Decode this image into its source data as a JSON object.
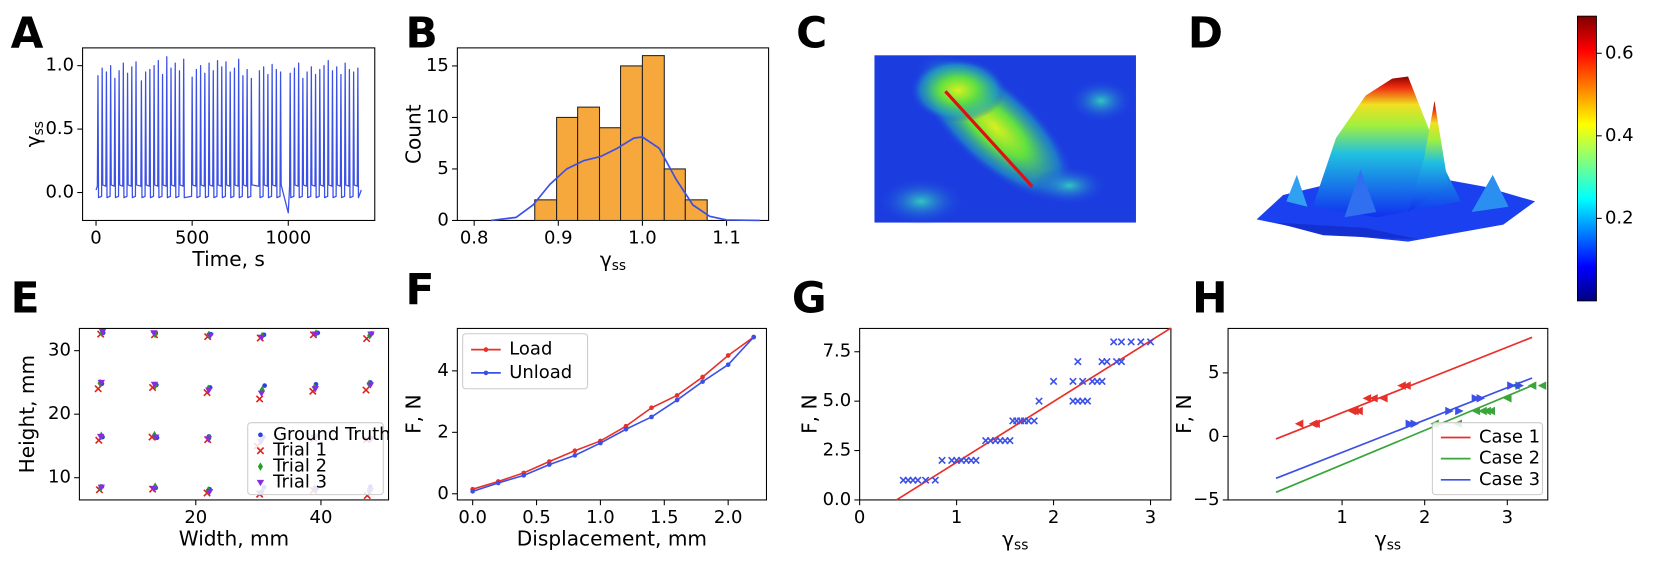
{
  "chart_data": [
    {
      "panel": "A",
      "type": "line",
      "xlabel": "Time, s",
      "ylabel": [
        "γ",
        "ss"
      ],
      "xlim": [
        -70,
        1450
      ],
      "ylim": [
        -0.22,
        1.14
      ],
      "xticks": [
        0,
        500,
        1000
      ],
      "yticks": [
        {
          "value": 0,
          "label": "0.0"
        },
        0.5,
        {
          "value": 1,
          "label": "1.0"
        }
      ],
      "series": [
        {
          "color": "#3b50e6",
          "x": [
            0,
            7,
            10,
            13,
            29,
            32,
            35,
            51,
            54,
            57,
            73,
            76,
            79,
            95,
            98,
            101,
            117,
            120,
            123,
            139,
            142,
            145,
            161,
            164,
            167,
            183,
            186,
            189,
            205,
            208,
            211,
            233,
            236,
            239,
            255,
            258,
            261,
            277,
            280,
            283,
            299,
            302,
            305,
            321,
            324,
            327,
            343,
            346,
            349,
            365,
            368,
            371,
            387,
            390,
            393,
            409,
            412,
            415,
            431,
            434,
            437,
            453,
            456,
            459,
            497,
            500,
            503,
            519,
            522,
            525,
            541,
            544,
            547,
            563,
            566,
            569,
            585,
            588,
            591,
            607,
            610,
            613,
            629,
            632,
            635,
            651,
            654,
            657,
            673,
            676,
            679,
            695,
            698,
            701,
            717,
            720,
            723,
            739,
            742,
            745,
            761,
            764,
            767,
            783,
            786,
            789,
            805,
            808,
            811,
            847,
            850,
            853,
            869,
            872,
            875,
            891,
            894,
            897,
            913,
            916,
            919,
            935,
            938,
            941,
            957,
            960,
            963,
            1000,
            1007,
            1010,
            1013,
            1029,
            1032,
            1035,
            1051,
            1054,
            1057,
            1073,
            1076,
            1079,
            1095,
            1098,
            1101,
            1117,
            1120,
            1123,
            1139,
            1142,
            1145,
            1161,
            1164,
            1167,
            1183,
            1186,
            1189,
            1205,
            1208,
            1211,
            1227,
            1230,
            1233,
            1249,
            1252,
            1255,
            1271,
            1274,
            1277,
            1293,
            1296,
            1299,
            1315,
            1318,
            1321,
            1337,
            1340,
            1343,
            1359,
            1362,
            1365,
            1380
          ],
          "values": [
            0.02,
            0.05,
            0.92,
            -0.04,
            -0.03,
            0.98,
            0.06,
            0.05,
            0.95,
            -0.04,
            -0.03,
            1.0,
            0.06,
            0.05,
            0.9,
            -0.04,
            -0.03,
            0.96,
            0.06,
            0.05,
            1.02,
            -0.04,
            -0.03,
            0.94,
            0.06,
            0.05,
            0.99,
            -0.04,
            -0.03,
            1.03,
            0.06,
            0.05,
            0.88,
            -0.04,
            -0.03,
            0.95,
            0.06,
            0.05,
            0.97,
            -0.04,
            -0.03,
            1.0,
            0.06,
            0.05,
            1.04,
            -0.04,
            -0.03,
            0.93,
            0.06,
            0.05,
            1.07,
            -0.04,
            -0.03,
            0.98,
            0.06,
            0.05,
            1.02,
            -0.04,
            -0.03,
            0.96,
            0.06,
            0.05,
            1.05,
            -0.04,
            -0.03,
            0.91,
            0.06,
            0.05,
            0.97,
            -0.04,
            -0.03,
            1.0,
            0.06,
            0.05,
            0.94,
            -0.04,
            -0.03,
            1.02,
            0.06,
            0.05,
            0.96,
            -0.04,
            -0.03,
            1.04,
            0.06,
            0.05,
            0.99,
            -0.04,
            -0.03,
            1.03,
            0.06,
            0.05,
            0.95,
            -0.04,
            -0.03,
            0.98,
            0.06,
            0.05,
            1.05,
            -0.04,
            -0.03,
            0.92,
            0.06,
            0.05,
            0.97,
            -0.04,
            -0.03,
            0.9,
            0.06,
            0.05,
            0.96,
            -0.04,
            -0.03,
            0.99,
            0.06,
            0.05,
            0.93,
            -0.04,
            -0.03,
            1.01,
            0.06,
            0.05,
            0.97,
            -0.04,
            -0.03,
            0.95,
            0.06,
            -0.16,
            0.05,
            0.94,
            -0.04,
            -0.03,
            0.98,
            0.06,
            0.05,
            1.02,
            -0.04,
            -0.03,
            0.9,
            0.06,
            0.05,
            0.95,
            -0.04,
            -0.03,
            0.99,
            0.06,
            0.05,
            0.93,
            -0.04,
            -0.03,
            0.97,
            0.06,
            0.05,
            1.0,
            -0.04,
            -0.03,
            1.04,
            0.06,
            0.05,
            0.96,
            -0.04,
            -0.03,
            0.99,
            0.06,
            0.05,
            0.93,
            -0.04,
            -0.03,
            1.02,
            0.06,
            0.05,
            0.97,
            -0.04,
            -0.03,
            0.95,
            0.06,
            0.05,
            0.98,
            -0.04,
            0.02
          ]
        }
      ]
    },
    {
      "panel": "B",
      "type": "histogram",
      "xlabel": [
        "γ",
        "ss"
      ],
      "ylabel": "Count",
      "xlim": [
        0.78,
        1.15
      ],
      "ylim": [
        0,
        16.75
      ],
      "xticks": [
        0.8,
        0.9,
        {
          "value": 1,
          "label": "1.0"
        },
        1.1
      ],
      "yticks": [
        0,
        5,
        10,
        15
      ],
      "bins": [
        0.872,
        0.898,
        0.923,
        0.949,
        0.974,
        1.0,
        1.026,
        1.051,
        1.077
      ],
      "counts": [
        2,
        10,
        11,
        9,
        15,
        16,
        5,
        2
      ],
      "color": "#f6a83c",
      "kde": {
        "color": "#3b50e6",
        "x": [
          0.82,
          0.85,
          0.87,
          0.89,
          0.91,
          0.93,
          0.95,
          0.97,
          0.99,
          1.0,
          1.02,
          1.04,
          1.06,
          1.08,
          1.1,
          1.14
        ],
        "values": [
          0,
          0.3,
          1.5,
          3.5,
          5,
          5.8,
          6.2,
          7,
          8,
          8.1,
          7,
          4,
          1.5,
          0.4,
          0.05,
          0
        ]
      }
    },
    {
      "panel": "C",
      "type": "heatmap"
    },
    {
      "panel": "D",
      "type": "surface",
      "colorbar": {
        "clim": [
          0,
          0.69
        ],
        "ticks": [
          0.2,
          0.4,
          0.6
        ]
      }
    },
    {
      "panel": "E",
      "type": "scatter",
      "xlabel": "Width, mm",
      "ylabel": "Height, mm",
      "xlim": [
        1.4,
        50.8
      ],
      "ylim": [
        6.5,
        33.5
      ],
      "xticks": [
        20,
        40
      ],
      "yticks": [
        10,
        20,
        30
      ],
      "legend": "lower right",
      "series": [
        {
          "name": "Ground Truth",
          "color": "#2b3fe6",
          "marker": "dot",
          "x": [
            5.0,
            13.6,
            22.2,
            30.9,
            39.3,
            47.9,
            5.1,
            13.8,
            22.1,
            30.8,
            39.4,
            48.0,
            5.0,
            13.7,
            22.3,
            31.0,
            39.2,
            47.9,
            5.2,
            13.6,
            22.4,
            30.9,
            39.5,
            48.1
          ],
          "values": [
            8.6,
            8.4,
            8.2,
            8.5,
            8.3,
            8.6,
            16.4,
            16.3,
            16.5,
            16.4,
            16.6,
            16.2,
            24.8,
            24.6,
            24.2,
            24.5,
            24.7,
            25.0,
            32.8,
            32.7,
            32.6,
            32.5,
            32.8,
            32.7
          ]
        },
        {
          "name": "Trial 1",
          "color": "#e0201c",
          "marker": "x",
          "x": [
            4.6,
            13.1,
            21.8,
            30.2,
            38.8,
            47.4,
            4.5,
            13.0,
            21.9,
            29.8,
            38.9,
            47.3,
            4.4,
            13.1,
            21.8,
            30.2,
            38.7,
            47.2,
            4.8,
            13.4,
            21.9,
            30.3,
            38.8,
            47.3
          ],
          "values": [
            8.1,
            8.2,
            7.6,
            7.4,
            8.0,
            7.2,
            15.9,
            16.4,
            16.0,
            15.0,
            16.2,
            16.0,
            24.0,
            24.2,
            23.4,
            22.4,
            23.6,
            23.8,
            32.6,
            32.5,
            32.2,
            32.0,
            32.5,
            31.9
          ]
        },
        {
          "name": "Trial 2",
          "color": "#1fa01f",
          "marker": "diamond",
          "x": [
            4.8,
            13.5,
            22.0,
            30.6,
            39.0,
            47.7,
            4.9,
            13.4,
            22.1,
            30.5,
            39.1,
            47.8,
            4.7,
            13.5,
            22.0,
            30.6,
            39.0,
            47.7,
            5.0,
            13.5,
            22.1,
            30.6,
            39.2,
            47.8
          ],
          "values": [
            8.4,
            8.6,
            8.0,
            7.8,
            8.3,
            7.9,
            16.6,
            16.7,
            16.2,
            15.9,
            16.4,
            16.3,
            24.9,
            24.5,
            24.0,
            23.8,
            24.2,
            24.8,
            32.8,
            32.6,
            32.5,
            32.3,
            32.7,
            32.4
          ]
        },
        {
          "name": "Trial 3",
          "color": "#8a2be2",
          "marker": "tri_down",
          "x": [
            4.9,
            13.3,
            22.2,
            30.4,
            39.2,
            47.9,
            4.8,
            13.6,
            22.0,
            30.4,
            39.0,
            48.0,
            4.9,
            13.4,
            22.1,
            30.5,
            39.1,
            47.9,
            5.1,
            13.3,
            22.3,
            30.5,
            39.1,
            48.0
          ],
          "values": [
            8.5,
            8.3,
            7.8,
            7.6,
            8.2,
            8.0,
            16.5,
            16.4,
            16.1,
            15.7,
            16.3,
            16.1,
            25.0,
            24.7,
            23.8,
            23.3,
            24.0,
            24.6,
            33.0,
            32.8,
            32.4,
            32.1,
            32.6,
            32.6
          ]
        }
      ]
    },
    {
      "panel": "F",
      "type": "line",
      "xlabel": "Displacement, mm",
      "ylabel": "F, N",
      "xlim": [
        -0.12,
        2.3
      ],
      "ylim": [
        -0.2,
        5.38
      ],
      "xticks": [
        {
          "value": 0,
          "label": "0.0"
        },
        0.5,
        {
          "value": 1,
          "label": "1.0"
        },
        1.5,
        {
          "value": 2,
          "label": "2.0"
        }
      ],
      "yticks": [
        0,
        2,
        4
      ],
      "legend": "upper left",
      "x": [
        0,
        0.2,
        0.4,
        0.6,
        0.8,
        1.0,
        1.2,
        1.4,
        1.6,
        1.8,
        2.0,
        2.2
      ],
      "series": [
        {
          "name": "Load",
          "color": "#e8302a",
          "marker": "dot",
          "values": [
            0.15,
            0.4,
            0.68,
            1.05,
            1.4,
            1.72,
            2.2,
            2.8,
            3.2,
            3.8,
            4.5,
            5.1
          ]
        },
        {
          "name": "Unload",
          "color": "#3b50e6",
          "marker": "dot",
          "values": [
            0.08,
            0.35,
            0.6,
            0.95,
            1.25,
            1.65,
            2.1,
            2.5,
            3.05,
            3.65,
            4.2,
            5.1
          ]
        }
      ]
    },
    {
      "panel": "G",
      "type": "scatter",
      "xlabel": [
        "γ",
        "ss"
      ],
      "ylabel": "F, N",
      "xlim": [
        0,
        3.21
      ],
      "ylim": [
        0,
        8.68
      ],
      "xticks": [
        0,
        1,
        2,
        3
      ],
      "yticks": [
        {
          "value": 0,
          "label": "0.0"
        },
        2.5,
        {
          "value": 5,
          "label": "5.0"
        },
        7.5
      ],
      "series": [
        {
          "color": "#3b50e6",
          "marker": "x",
          "x": [
            0.45,
            0.5,
            0.55,
            0.6,
            0.68,
            0.78,
            0.85,
            0.95,
            1.0,
            1.05,
            1.1,
            1.15,
            1.2,
            1.3,
            1.35,
            1.4,
            1.45,
            1.5,
            1.55,
            1.58,
            1.62,
            1.66,
            1.7,
            1.74,
            1.8,
            1.85,
            2.2,
            2.25,
            2.3,
            2.35,
            2.0,
            2.2,
            2.3,
            2.4,
            2.45,
            2.5,
            2.25,
            2.5,
            2.55,
            2.65,
            2.7,
            2.62,
            2.7,
            2.8,
            2.9,
            3.0
          ],
          "values": [
            1,
            1,
            1,
            1,
            1,
            1,
            2,
            2,
            2,
            2,
            2,
            2,
            2,
            3,
            3,
            3,
            3,
            3,
            3,
            4,
            4,
            4,
            4,
            4,
            4,
            5,
            5,
            5,
            5,
            5,
            6,
            6,
            6,
            6,
            6,
            6,
            7,
            7,
            7,
            7,
            7,
            8,
            8,
            8,
            8,
            8
          ],
          "fit_color": "#e8302a",
          "fit_x": [
            0.38,
            3.21
          ],
          "fit_values": [
            0,
            8.7
          ]
        }
      ]
    },
    {
      "panel": "H",
      "type": "scatter",
      "xlabel": [
        "γ",
        "ss"
      ],
      "ylabel": "F, N",
      "xlim": [
        -0.38,
        3.49
      ],
      "ylim": [
        -5,
        8.5
      ],
      "xticks": [
        1,
        2,
        3
      ],
      "yticks": [
        {
          "value": -5,
          "label": "−5"
        },
        0,
        5
      ],
      "legend": "lower right",
      "series": [
        {
          "name": "Case 1",
          "color": "#e8302a",
          "marker": "tri_left",
          "x": [
            0.48,
            0.65,
            0.68,
            1.12,
            1.15,
            1.2,
            1.3,
            1.38,
            1.5,
            1.72,
            1.78
          ],
          "values": [
            1,
            1,
            1,
            2,
            2,
            2,
            3,
            3,
            3,
            4,
            4
          ],
          "fit_x": [
            0.2,
            3.3
          ],
          "fit_values": [
            -0.2,
            7.8
          ]
        },
        {
          "name": "Case 2",
          "color": "#3aa53a",
          "marker": "tri_left",
          "x": [
            2.12,
            2.4,
            2.62,
            2.7,
            2.75,
            2.8,
            3.0,
            3.1,
            3.3,
            3.42
          ],
          "values": [
            1,
            1,
            2,
            2,
            2,
            2,
            3,
            4,
            4,
            4
          ],
          "fit_x": [
            0.2,
            3.3
          ],
          "fit_values": [
            -4.4,
            4.0
          ]
        },
        {
          "name": "Case 3",
          "color": "#3b50e6",
          "marker": "tri_right",
          "x": [
            1.82,
            1.88,
            2.3,
            2.42,
            2.62,
            2.68,
            3.05,
            3.15
          ],
          "values": [
            1,
            1,
            2,
            2,
            3,
            3,
            4,
            4
          ],
          "fit_x": [
            0.2,
            3.3
          ],
          "fit_values": [
            -3.3,
            4.6
          ]
        }
      ]
    }
  ]
}
